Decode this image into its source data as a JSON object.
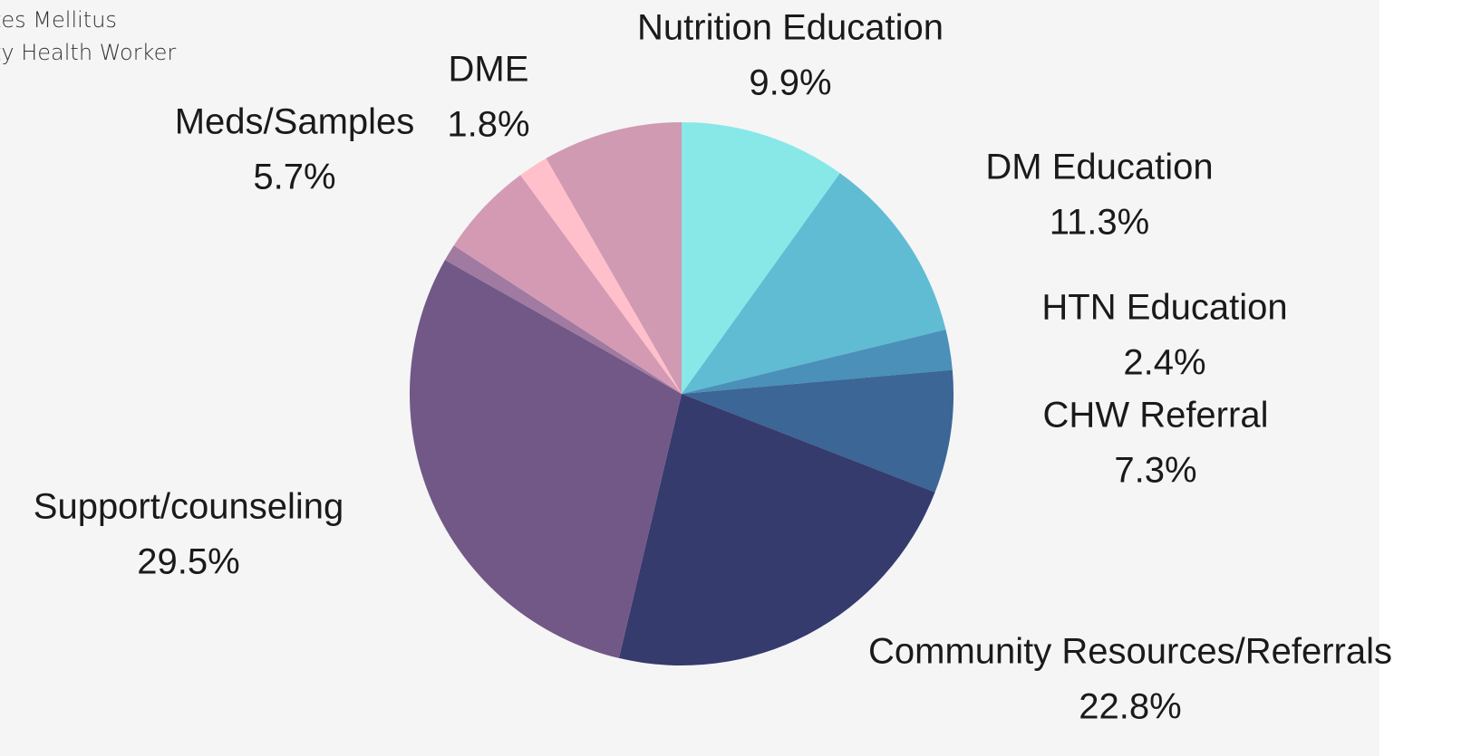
{
  "chart_data": {
    "type": "pie",
    "legend_text": [
      "tes Mellitus",
      "ty Health Worker"
    ],
    "categories": [
      "Nutrition Education",
      "DM Education",
      "HTN Education",
      "CHW Referral",
      "Community Resources/Referrals",
      "Support/counseling",
      null,
      "Meds/Samples",
      "DME",
      null
    ],
    "values": [
      9.9,
      11.3,
      2.4,
      7.3,
      22.8,
      29.5,
      1.0,
      5.7,
      1.8,
      8.3
    ],
    "value_labels": [
      "9.9%",
      "11.3%",
      "2.4%",
      "7.3%",
      "22.8%",
      "29.5%",
      null,
      "5.7%",
      "1.8%",
      null
    ],
    "colors": [
      "#88e8e8",
      "#5fbcd3",
      "#4a90b8",
      "#3b6696",
      "#363b6e",
      "#725886",
      "#a07aa0",
      "#d49ab4",
      "#ffc0cb",
      "#d09ab2"
    ]
  }
}
